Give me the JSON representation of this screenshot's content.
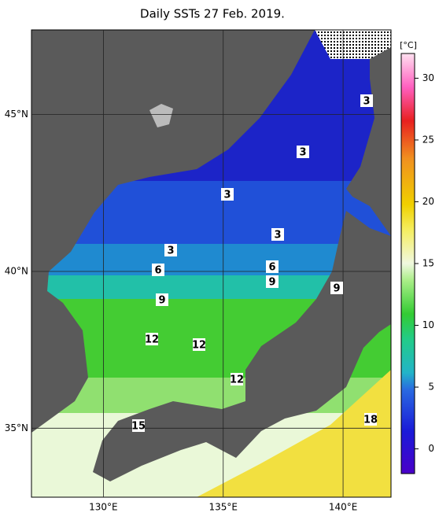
{
  "title": "Daily SSTs 27 Feb. 2019.",
  "map": {
    "xlim": [
      127,
      142
    ],
    "ylim": [
      32.8,
      47.7
    ],
    "xticks": [
      {
        "value": 130,
        "label": "130°E"
      },
      {
        "value": 135,
        "label": "135°E"
      },
      {
        "value": 140,
        "label": "140°E"
      }
    ],
    "yticks": [
      {
        "value": 45,
        "label": "45°N"
      },
      {
        "value": 40,
        "label": "40°N"
      },
      {
        "value": 35,
        "label": "35°N"
      }
    ],
    "contour_labels": [
      3,
      3,
      3,
      3,
      3,
      6,
      6,
      9,
      9,
      9,
      12,
      12,
      12,
      15,
      18
    ]
  },
  "colorbar": {
    "unit": "[°C]",
    "lim": [
      -2,
      32
    ],
    "ticks": [
      0,
      5,
      10,
      15,
      20,
      25,
      30
    ]
  }
}
